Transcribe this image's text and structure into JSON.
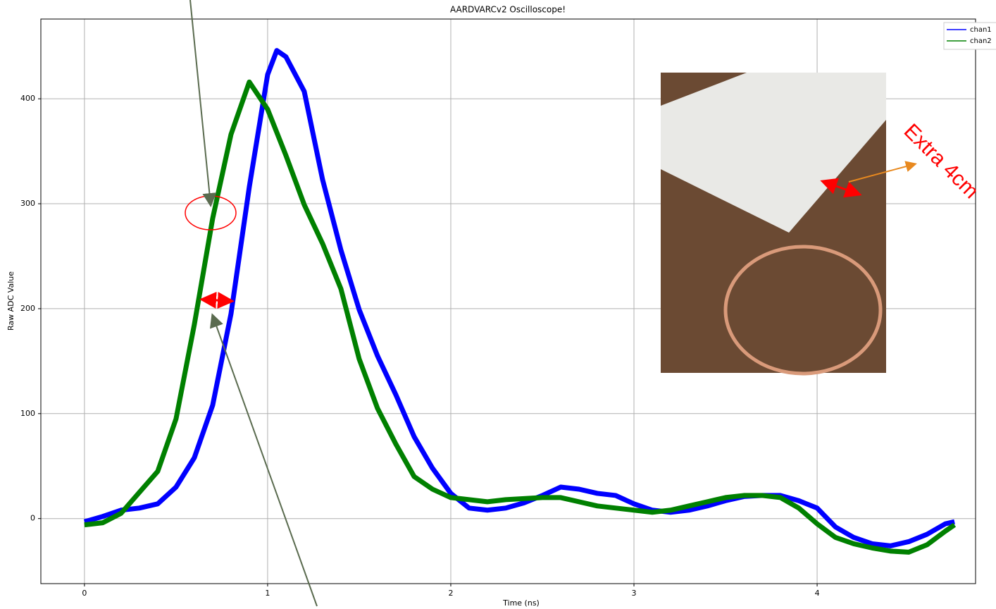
{
  "chart_data": {
    "type": "line",
    "title": "AARDVARCv2 Oscilloscope!",
    "xlabel": "Time (ns)",
    "ylabel": "Raw ADC Value",
    "x": [
      0,
      0.1,
      0.2,
      0.3,
      0.4,
      0.5,
      0.6,
      0.7,
      0.8,
      0.9,
      1.0,
      1.05,
      1.1,
      1.2,
      1.3,
      1.4,
      1.5,
      1.6,
      1.7,
      1.8,
      1.9,
      2.0,
      2.1,
      2.2,
      2.3,
      2.4,
      2.5,
      2.6,
      2.7,
      2.8,
      2.9,
      3.0,
      3.1,
      3.2,
      3.3,
      3.4,
      3.5,
      3.6,
      3.7,
      3.8,
      3.9,
      4.0,
      4.1,
      4.2,
      4.3,
      4.4,
      4.5,
      4.6,
      4.7,
      4.75
    ],
    "series": [
      {
        "name": "chan1",
        "color": "#0000ff",
        "values": [
          -3,
          2,
          8,
          10,
          14,
          30,
          58,
          108,
          195,
          316,
          423,
          446,
          440,
          407,
          323,
          256,
          199,
          155,
          118,
          78,
          48,
          24,
          10,
          8,
          10,
          15,
          22,
          30,
          28,
          24,
          22,
          14,
          8,
          6,
          8,
          12,
          17,
          21,
          22,
          22,
          17,
          10,
          -8,
          -18,
          -24,
          -26,
          -22,
          -15,
          -5,
          -3
        ]
      },
      {
        "name": "chan2",
        "color": "#008000",
        "values": [
          -6,
          -4,
          5,
          25,
          45,
          95,
          185,
          286,
          366,
          416,
          390,
          368,
          346,
          299,
          262,
          219,
          152,
          105,
          71,
          40,
          28,
          20,
          18,
          16,
          18,
          19,
          20,
          20,
          16,
          12,
          10,
          8,
          6,
          8,
          12,
          16,
          20,
          22,
          22,
          20,
          10,
          -5,
          -18,
          -24,
          -28,
          -31,
          -32,
          -25,
          -12,
          -6
        ]
      }
    ],
    "xlim": [
      -0.238,
      4.865
    ],
    "ylim": [
      -62,
      476
    ],
    "xticks": [
      0,
      1,
      2,
      3,
      4
    ],
    "yticks": [
      0,
      100,
      200,
      300,
      400
    ],
    "grid": true,
    "legend": "upper right",
    "annotations": [
      "Extra 4cm"
    ]
  }
}
